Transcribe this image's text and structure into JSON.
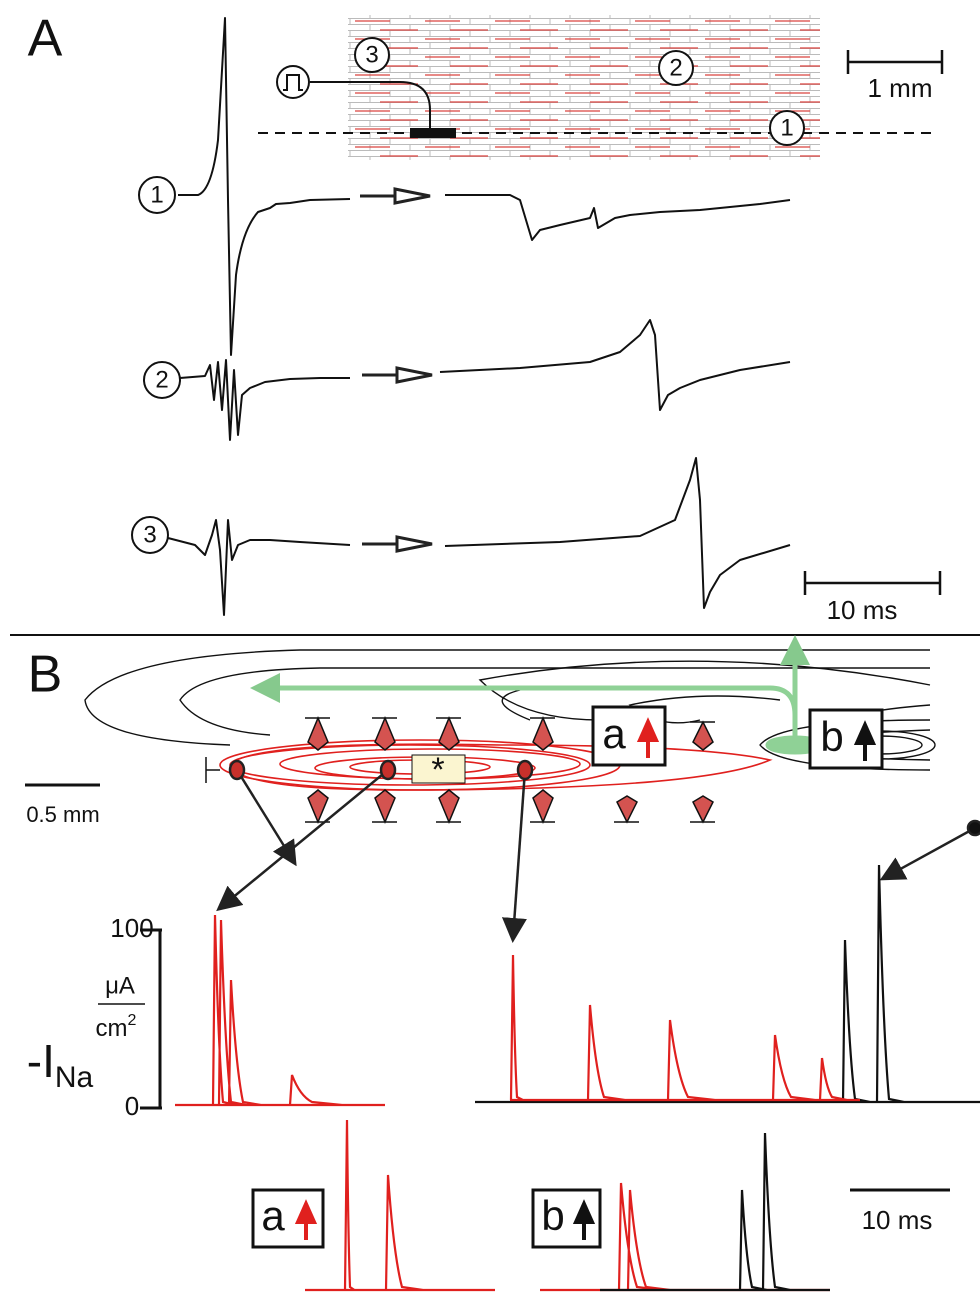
{
  "panels": [
    "A",
    "B"
  ],
  "panel_a": {
    "sites": [
      "1",
      "2",
      "3"
    ],
    "traces": [
      "1",
      "2",
      "3"
    ],
    "scale_length": "1 mm",
    "scale_time": "10 ms"
  },
  "panel_b": {
    "stim_mark": "*",
    "boxes": [
      "a",
      "b"
    ],
    "scale_length": "0.5 mm",
    "y_label": {
      "main": "-I",
      "sub": "Na"
    },
    "units": {
      "numerator": "μA",
      "denominator": "cm",
      "power": "2"
    },
    "ylim": [
      0,
      100
    ],
    "yticks": [
      0,
      100
    ],
    "scale_time": "10 ms"
  }
}
